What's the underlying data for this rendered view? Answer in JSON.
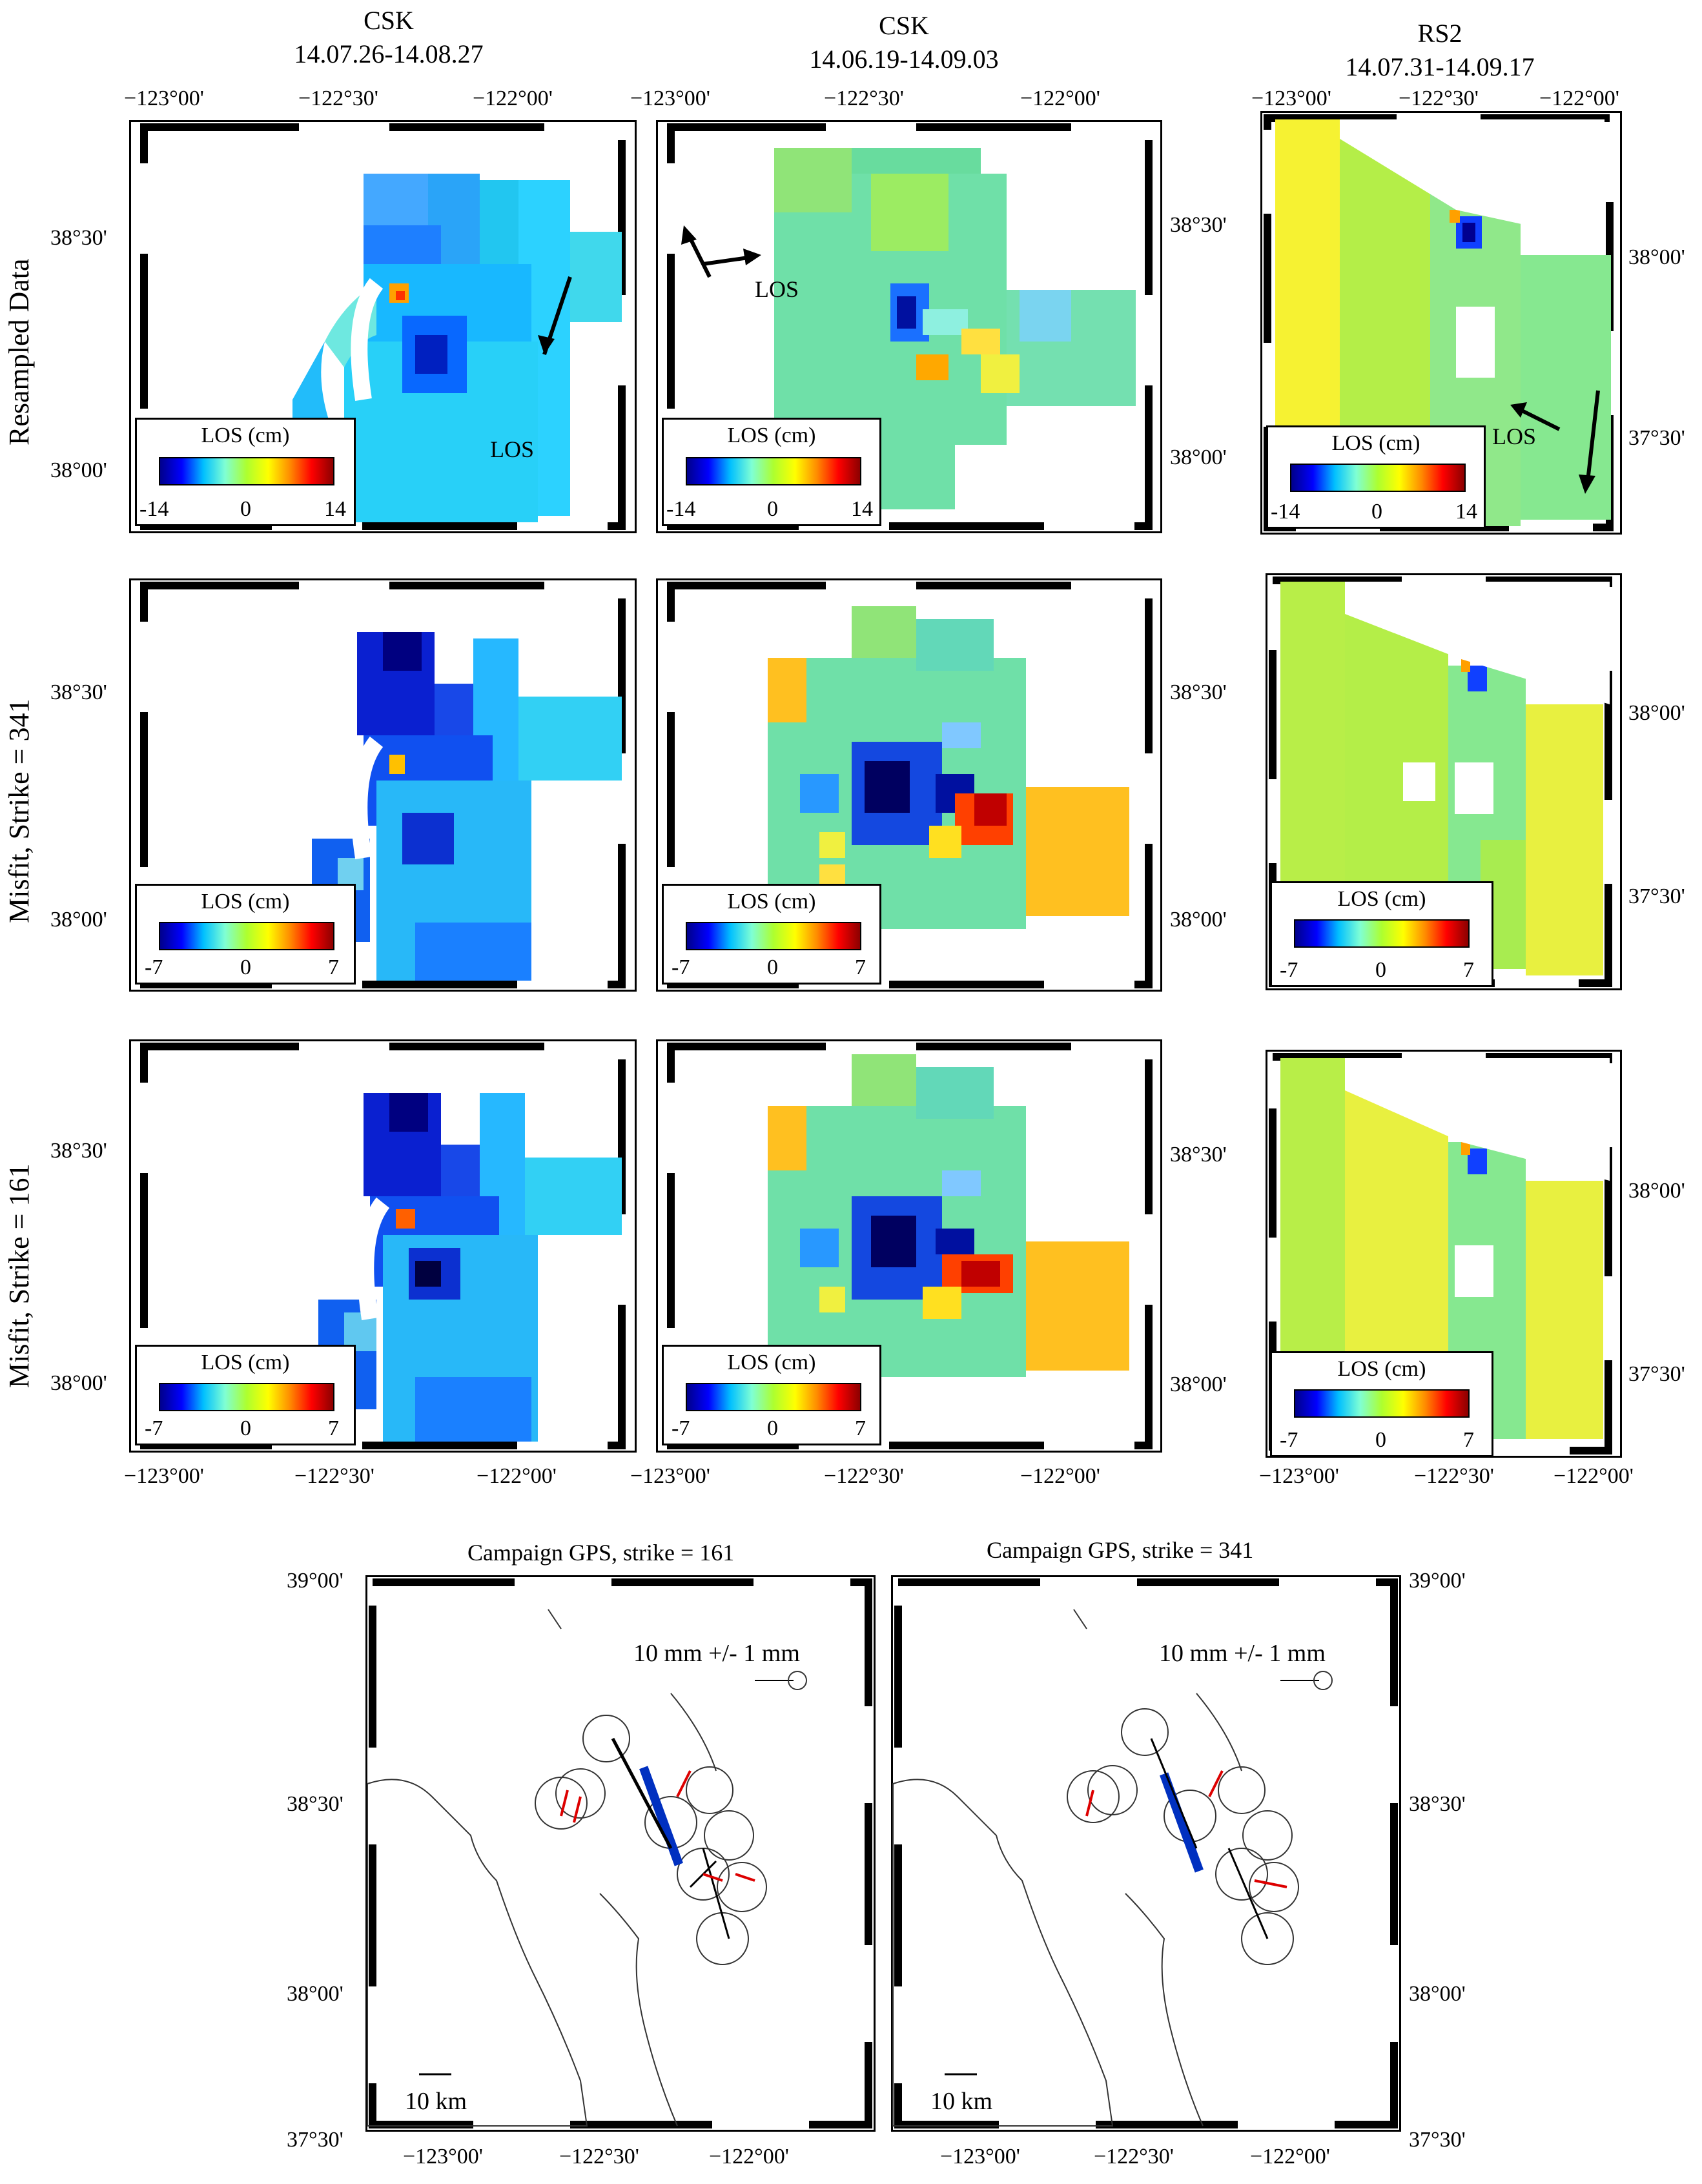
{
  "columns": [
    {
      "sensor": "CSK",
      "dates": "14.07.26-14.08.27"
    },
    {
      "sensor": "CSK",
      "dates": "14.06.19-14.09.03"
    },
    {
      "sensor": "RS2",
      "dates": "14.07.31-14.09.17"
    }
  ],
  "rows": [
    {
      "label": "Resampled Data"
    },
    {
      "label": "Misfit, Strike = 341"
    },
    {
      "label": "Misfit, Strike = 161"
    }
  ],
  "colorbar": {
    "title": "LOS (cm)",
    "row1": {
      "min": "-14",
      "mid": "0",
      "max": "14"
    },
    "row2": {
      "min": "-7",
      "mid": "0",
      "max": "7"
    },
    "row3": {
      "min": "-7",
      "mid": "0",
      "max": "7"
    }
  },
  "los_arrow_label": "LOS",
  "lon_ticks": [
    "−123°00'",
    "−122°30'",
    "−122°00'"
  ],
  "lat_ticks_csk": [
    "38°30'",
    "38°00'"
  ],
  "lat_ticks_rs2": [
    "38°00'",
    "37°30'"
  ],
  "gps": {
    "left": {
      "title": "Campaign GPS, strike = 161"
    },
    "right": {
      "title": "Campaign GPS, strike = 341"
    },
    "scale_label": "10 mm +/- 1 mm",
    "km_label": "10 km",
    "lat_ticks": [
      "39°00'",
      "38°30'",
      "38°00'",
      "37°30'"
    ],
    "lon_ticks": [
      "−123°00'",
      "−122°30'",
      "−122°00'"
    ]
  },
  "colors": {
    "dark_blue": "#0000aa",
    "blue": "#1e6fff",
    "cyan": "#00ccff",
    "aqua": "#44e0c8",
    "green": "#8fe860",
    "yellow": "#f2f23a",
    "orange": "#ffb000",
    "red": "#ff2000",
    "gps_red": "#dd0000"
  }
}
